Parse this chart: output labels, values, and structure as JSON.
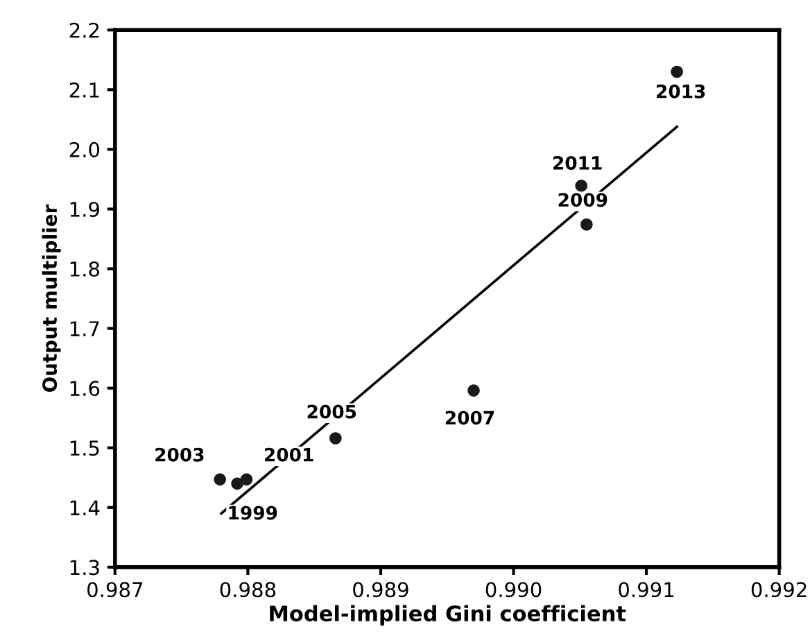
{
  "chart_data": {
    "type": "scatter",
    "xlabel": "Model-implied Gini coefficient",
    "ylabel": "Output multiplier",
    "series": [
      {
        "color": "#1a1a1a",
        "marker": "circle",
        "x": [
          0.98792,
          0.98799,
          0.98779,
          0.98866,
          0.9897,
          0.99055,
          0.99051,
          0.99123
        ],
        "values": [
          1.44,
          1.447,
          1.447,
          1.516,
          1.596,
          1.874,
          1.939,
          2.13
        ]
      },
      {
        "type": "line",
        "color": "#000000",
        "marker": "none",
        "line_style": "solid",
        "x": [
          0.9878,
          0.99123
        ],
        "values": [
          1.39,
          2.038
        ]
      }
    ],
    "annotations": [
      {
        "text": "1999",
        "x": 0.98792,
        "y": 1.44
      },
      {
        "text": "2001",
        "x": 0.98799,
        "y": 1.447
      },
      {
        "text": "2003",
        "x": 0.98779,
        "y": 1.447
      },
      {
        "text": "2005",
        "x": 0.98866,
        "y": 1.516
      },
      {
        "text": "2007",
        "x": 0.9897,
        "y": 1.596
      },
      {
        "text": "2009",
        "x": 0.99055,
        "y": 1.874
      },
      {
        "text": "2011",
        "x": 0.99051,
        "y": 1.939
      },
      {
        "text": "2013",
        "x": 0.99123,
        "y": 2.13
      }
    ],
    "xlim": [
      0.987,
      0.992
    ],
    "xticks": [
      {
        "value": 0.987,
        "label": "0.987"
      },
      {
        "value": 0.988,
        "label": "0.988"
      },
      {
        "value": 0.989,
        "label": "0.989"
      },
      {
        "value": 0.99,
        "label": "0.990"
      },
      {
        "value": 0.991,
        "label": "0.991"
      },
      {
        "value": 0.992,
        "label": "0.992"
      }
    ],
    "ylim": [
      1.3,
      2.2
    ],
    "yticks": [
      {
        "value": 1.3,
        "label": "1.3"
      },
      {
        "value": 1.4,
        "label": "1.4"
      },
      {
        "value": 1.5,
        "label": "1.5"
      },
      {
        "value": 1.6,
        "label": "1.6"
      },
      {
        "value": 1.7,
        "label": "1.7"
      },
      {
        "value": 1.8,
        "label": "1.8"
      },
      {
        "value": 1.9,
        "label": "1.9"
      },
      {
        "value": 2.0,
        "label": "2.0"
      },
      {
        "value": 2.1,
        "label": "2.1"
      },
      {
        "value": 2.2,
        "label": "2.2"
      }
    ],
    "grid": false,
    "legend": false
  }
}
